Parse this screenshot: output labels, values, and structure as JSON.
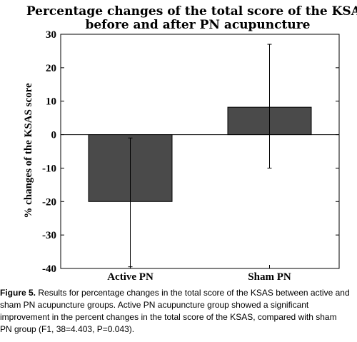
{
  "chart_data": {
    "type": "bar",
    "title_lines": [
      "Percentage changes of the total score of the KSAS",
      "before and after PN acupuncture"
    ],
    "ylabel": "% changes of the KSAS score",
    "xlabel": "",
    "categories": [
      "Active PN",
      "Sham PN"
    ],
    "values": [
      -20,
      8.2
    ],
    "error_low": [
      -39.5,
      -10
    ],
    "error_high": [
      -1,
      27
    ],
    "ylim": [
      -40,
      30
    ],
    "yticks": [
      30,
      20,
      10,
      0,
      -10,
      -20,
      -30,
      -40
    ],
    "bar_color": "#4a4a4a",
    "grid": false
  },
  "caption": {
    "label": "Figure 5.",
    "text": " Results for percentage changes in the total score of the KSAS between active and sham PN acupuncture groups. Active PN acupuncture group showed a significant improvement in the percent changes in the total score of the KSAS, compared with sham PN group (F1, 38=4.403, P=0.043)."
  }
}
